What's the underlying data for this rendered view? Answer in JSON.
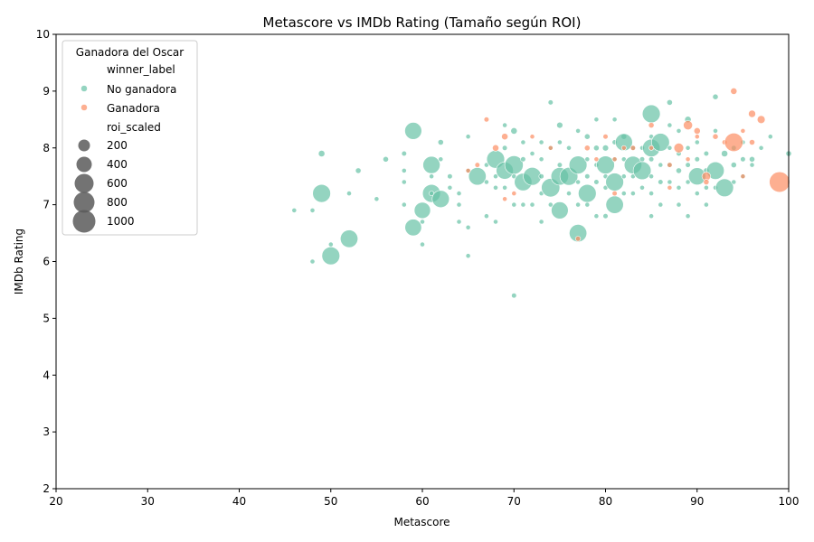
{
  "chart_data": {
    "type": "scatter",
    "title": "Metascore vs IMDb Rating (Tamaño según ROI)",
    "xlabel": "Metascore",
    "ylabel": "IMDb Rating",
    "xlim": [
      20,
      100
    ],
    "ylim": [
      2,
      10
    ],
    "xticks": [
      20,
      30,
      40,
      50,
      60,
      70,
      80,
      90,
      100
    ],
    "yticks": [
      2,
      3,
      4,
      5,
      6,
      7,
      8,
      9,
      10
    ],
    "grid": false,
    "legend": {
      "placement": "top-left",
      "title": "Ganadora del Oscar",
      "hue_header": "winner_label",
      "size_header": "roi_scaled",
      "size_entries": [
        200,
        400,
        600,
        800,
        1000
      ]
    },
    "colors": {
      "No ganadora": "#66c2a5",
      "Ganadora": "#fc8d62",
      "size_legend": "#5a5a5a"
    },
    "series": [
      {
        "name": "No ganadora",
        "points": [
          [
            46,
            6.9,
            10
          ],
          [
            48,
            6.9,
            20
          ],
          [
            48,
            6.0,
            20
          ],
          [
            49,
            7.9,
            40
          ],
          [
            49,
            7.2,
            300
          ],
          [
            50,
            6.3,
            20
          ],
          [
            50,
            6.1,
            300
          ],
          [
            52,
            7.2,
            15
          ],
          [
            52,
            6.4,
            290
          ],
          [
            53,
            7.6,
            30
          ],
          [
            55,
            7.1,
            20
          ],
          [
            56,
            7.8,
            30
          ],
          [
            58,
            7.9,
            25
          ],
          [
            58,
            7.6,
            15
          ],
          [
            58,
            7.4,
            15
          ],
          [
            58,
            7.0,
            15
          ],
          [
            59,
            8.3,
            270
          ],
          [
            59,
            6.6,
            260
          ],
          [
            60,
            6.9,
            250
          ],
          [
            60,
            6.3,
            15
          ],
          [
            60,
            6.7,
            20
          ],
          [
            61,
            7.7,
            280
          ],
          [
            61,
            7.2,
            300
          ],
          [
            61,
            7.5,
            15
          ],
          [
            61,
            7.2,
            20
          ],
          [
            62,
            7.1,
            280
          ],
          [
            62,
            8.1,
            30
          ],
          [
            62,
            7.8,
            20
          ],
          [
            63,
            7.5,
            25
          ],
          [
            63,
            7.3,
            15
          ],
          [
            64,
            7.2,
            20
          ],
          [
            64,
            7.0,
            15
          ],
          [
            64,
            6.7,
            15
          ],
          [
            65,
            8.2,
            10
          ],
          [
            65,
            7.6,
            20
          ],
          [
            65,
            6.6,
            20
          ],
          [
            65,
            6.1,
            20
          ],
          [
            66,
            7.5,
            290
          ],
          [
            67,
            7.7,
            20
          ],
          [
            67,
            7.4,
            20
          ],
          [
            67,
            6.8,
            15
          ],
          [
            68,
            7.8,
            300
          ],
          [
            68,
            7.5,
            20
          ],
          [
            68,
            7.3,
            15
          ],
          [
            68,
            6.7,
            15
          ],
          [
            69,
            8.4,
            20
          ],
          [
            69,
            8.0,
            25
          ],
          [
            69,
            7.6,
            280
          ],
          [
            69,
            7.3,
            15
          ],
          [
            70,
            8.3,
            40
          ],
          [
            70,
            7.7,
            320
          ],
          [
            70,
            7.5,
            20
          ],
          [
            70,
            7.0,
            15
          ],
          [
            70,
            5.4,
            25
          ],
          [
            71,
            8.1,
            20
          ],
          [
            71,
            7.8,
            25
          ],
          [
            71,
            7.4,
            290
          ],
          [
            71,
            7.0,
            15
          ],
          [
            72,
            7.9,
            20
          ],
          [
            72,
            7.5,
            300
          ],
          [
            72,
            7.0,
            20
          ],
          [
            73,
            8.1,
            15
          ],
          [
            73,
            7.8,
            20
          ],
          [
            73,
            7.5,
            25
          ],
          [
            73,
            7.2,
            15
          ],
          [
            73,
            6.7,
            15
          ],
          [
            74,
            8.8,
            25
          ],
          [
            74,
            8.0,
            20
          ],
          [
            74,
            7.3,
            320
          ],
          [
            74,
            7.0,
            15
          ],
          [
            75,
            8.4,
            35
          ],
          [
            75,
            8.1,
            20
          ],
          [
            75,
            7.7,
            25
          ],
          [
            75,
            7.5,
            290
          ],
          [
            75,
            6.9,
            270
          ],
          [
            76,
            8.0,
            20
          ],
          [
            76,
            7.5,
            300
          ],
          [
            76,
            7.2,
            15
          ],
          [
            77,
            8.3,
            20
          ],
          [
            77,
            7.7,
            300
          ],
          [
            77,
            7.4,
            20
          ],
          [
            77,
            7.0,
            15
          ],
          [
            77,
            6.5,
            290
          ],
          [
            78,
            8.2,
            30
          ],
          [
            78,
            7.8,
            20
          ],
          [
            78,
            7.5,
            25
          ],
          [
            78,
            7.2,
            300
          ],
          [
            78,
            7.0,
            15
          ],
          [
            79,
            8.5,
            15
          ],
          [
            79,
            8.0,
            30
          ],
          [
            79,
            7.7,
            20
          ],
          [
            79,
            7.4,
            25
          ],
          [
            79,
            6.8,
            20
          ],
          [
            80,
            8.0,
            35
          ],
          [
            80,
            7.7,
            300
          ],
          [
            80,
            7.5,
            20
          ],
          [
            80,
            7.3,
            15
          ],
          [
            80,
            6.8,
            25
          ],
          [
            81,
            8.5,
            20
          ],
          [
            81,
            8.1,
            25
          ],
          [
            81,
            7.8,
            20
          ],
          [
            81,
            7.4,
            300
          ],
          [
            81,
            7.0,
            290
          ],
          [
            82,
            8.2,
            30
          ],
          [
            82,
            8.1,
            280
          ],
          [
            82,
            7.8,
            20
          ],
          [
            82,
            7.5,
            20
          ],
          [
            82,
            7.2,
            15
          ],
          [
            83,
            8.0,
            15
          ],
          [
            83,
            7.7,
            290
          ],
          [
            83,
            7.5,
            20
          ],
          [
            83,
            7.2,
            15
          ],
          [
            84,
            8.0,
            20
          ],
          [
            84,
            7.8,
            25
          ],
          [
            84,
            7.6,
            300
          ],
          [
            84,
            7.3,
            15
          ],
          [
            85,
            8.6,
            300
          ],
          [
            85,
            8.2,
            20
          ],
          [
            85,
            8.0,
            290
          ],
          [
            85,
            7.8,
            25
          ],
          [
            85,
            7.5,
            20
          ],
          [
            85,
            7.2,
            15
          ],
          [
            85,
            6.8,
            15
          ],
          [
            86,
            8.1,
            300
          ],
          [
            86,
            7.7,
            20
          ],
          [
            86,
            7.4,
            25
          ],
          [
            86,
            7.0,
            20
          ],
          [
            87,
            8.8,
            30
          ],
          [
            87,
            8.4,
            20
          ],
          [
            87,
            8.0,
            20
          ],
          [
            87,
            7.7,
            25
          ],
          [
            87,
            7.4,
            15
          ],
          [
            88,
            8.3,
            20
          ],
          [
            88,
            7.9,
            25
          ],
          [
            88,
            7.6,
            30
          ],
          [
            88,
            7.3,
            20
          ],
          [
            88,
            7.0,
            15
          ],
          [
            89,
            8.5,
            40
          ],
          [
            89,
            8.0,
            20
          ],
          [
            89,
            7.7,
            25
          ],
          [
            89,
            7.4,
            20
          ],
          [
            89,
            6.8,
            15
          ],
          [
            90,
            8.1,
            20
          ],
          [
            90,
            7.8,
            25
          ],
          [
            90,
            7.5,
            280
          ],
          [
            90,
            7.2,
            20
          ],
          [
            91,
            7.9,
            25
          ],
          [
            91,
            7.6,
            30
          ],
          [
            91,
            7.3,
            20
          ],
          [
            91,
            7.0,
            15
          ],
          [
            92,
            8.9,
            30
          ],
          [
            92,
            8.3,
            20
          ],
          [
            92,
            7.6,
            290
          ],
          [
            92,
            7.3,
            15
          ],
          [
            93,
            7.9,
            40
          ],
          [
            93,
            7.3,
            300
          ],
          [
            94,
            8.0,
            25
          ],
          [
            94,
            7.7,
            30
          ],
          [
            94,
            7.4,
            20
          ],
          [
            95,
            8.1,
            20
          ],
          [
            95,
            7.8,
            25
          ],
          [
            95,
            7.5,
            20
          ],
          [
            96,
            7.8,
            30
          ],
          [
            96,
            7.7,
            20
          ],
          [
            97,
            8.0,
            15
          ],
          [
            98,
            8.2,
            20
          ],
          [
            100,
            7.9,
            30
          ]
        ]
      },
      {
        "name": "Ganadora",
        "points": [
          [
            65,
            7.6,
            20
          ],
          [
            66,
            7.7,
            25
          ],
          [
            67,
            8.5,
            25
          ],
          [
            68,
            8.0,
            40
          ],
          [
            69,
            8.2,
            40
          ],
          [
            69,
            7.1,
            15
          ],
          [
            70,
            7.2,
            20
          ],
          [
            72,
            8.2,
            20
          ],
          [
            74,
            8.0,
            20
          ],
          [
            77,
            6.4,
            25
          ],
          [
            78,
            8.0,
            30
          ],
          [
            79,
            7.8,
            20
          ],
          [
            80,
            8.2,
            25
          ],
          [
            81,
            7.8,
            20
          ],
          [
            81,
            7.2,
            25
          ],
          [
            82,
            8.0,
            20
          ],
          [
            83,
            8.0,
            25
          ],
          [
            85,
            8.4,
            30
          ],
          [
            85,
            8.0,
            20
          ],
          [
            87,
            7.7,
            25
          ],
          [
            87,
            7.3,
            20
          ],
          [
            88,
            8.0,
            90
          ],
          [
            89,
            8.4,
            80
          ],
          [
            89,
            7.8,
            20
          ],
          [
            90,
            8.3,
            40
          ],
          [
            90,
            8.2,
            20
          ],
          [
            91,
            7.5,
            70
          ],
          [
            91,
            7.4,
            30
          ],
          [
            92,
            8.2,
            30
          ],
          [
            93,
            8.1,
            25
          ],
          [
            94,
            9.0,
            40
          ],
          [
            94,
            8.1,
            320
          ],
          [
            95,
            8.3,
            20
          ],
          [
            95,
            7.5,
            20
          ],
          [
            96,
            8.6,
            50
          ],
          [
            96,
            8.1,
            30
          ],
          [
            97,
            8.5,
            60
          ],
          [
            99,
            7.4,
            390
          ]
        ]
      }
    ]
  }
}
